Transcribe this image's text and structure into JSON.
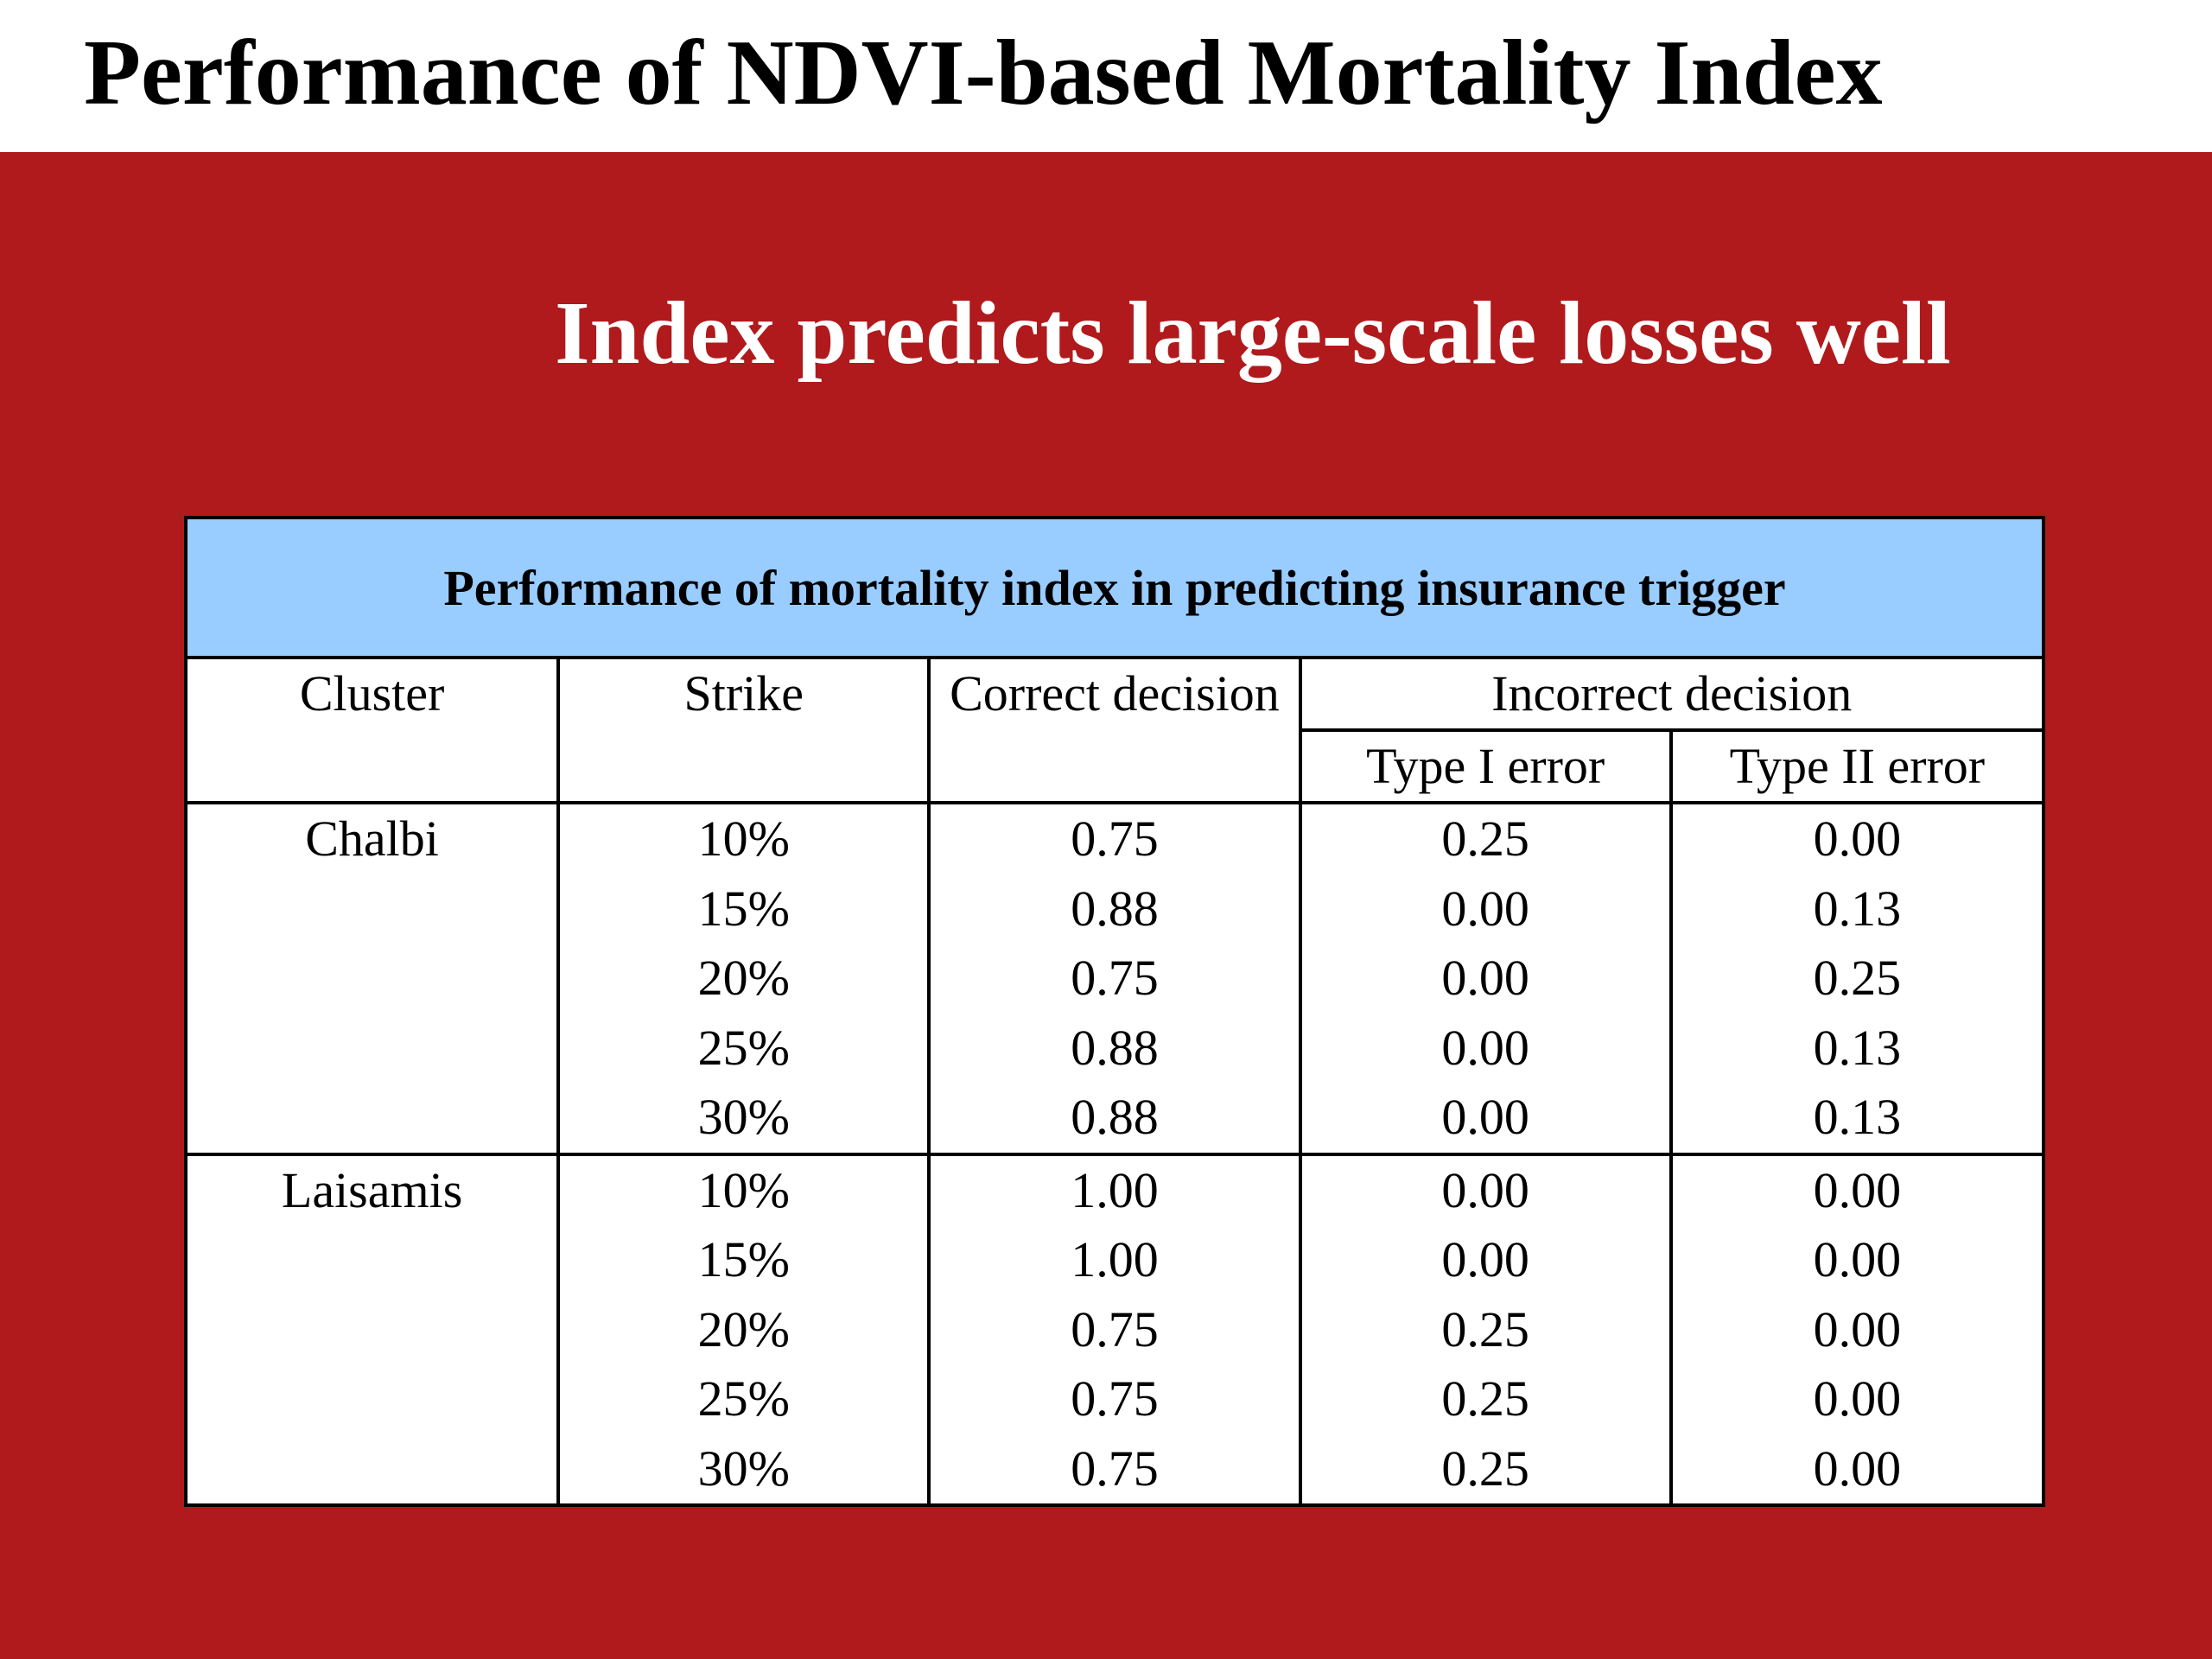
{
  "slide": {
    "title": "Performance of NDVI-based Mortality Index",
    "subtitle": "Index predicts large-scale losses well",
    "colors": {
      "panel": "#b01a1c",
      "table_header": "#99ccff"
    }
  },
  "table": {
    "caption": "Performance of mortality index in predicting insurance trigger",
    "headers": {
      "cluster": "Cluster",
      "strike": "Strike",
      "correct": "Correct decision",
      "incorrect": "Incorrect decision",
      "type1": "Type I error",
      "type2": "Type II error"
    },
    "groups": [
      {
        "cluster": "Chalbi",
        "rows": [
          {
            "strike": "10%",
            "correct": "0.75",
            "type1": "0.25",
            "type2": "0.00"
          },
          {
            "strike": "15%",
            "correct": "0.88",
            "type1": "0.00",
            "type2": "0.13"
          },
          {
            "strike": "20%",
            "correct": "0.75",
            "type1": "0.00",
            "type2": "0.25"
          },
          {
            "strike": "25%",
            "correct": "0.88",
            "type1": "0.00",
            "type2": "0.13"
          },
          {
            "strike": "30%",
            "correct": "0.88",
            "type1": "0.00",
            "type2": "0.13"
          }
        ]
      },
      {
        "cluster": "Laisamis",
        "rows": [
          {
            "strike": "10%",
            "correct": "1.00",
            "type1": "0.00",
            "type2": "0.00"
          },
          {
            "strike": "15%",
            "correct": "1.00",
            "type1": "0.00",
            "type2": "0.00"
          },
          {
            "strike": "20%",
            "correct": "0.75",
            "type1": "0.25",
            "type2": "0.00"
          },
          {
            "strike": "25%",
            "correct": "0.75",
            "type1": "0.25",
            "type2": "0.00"
          },
          {
            "strike": "30%",
            "correct": "0.75",
            "type1": "0.25",
            "type2": "0.00"
          }
        ]
      }
    ]
  }
}
